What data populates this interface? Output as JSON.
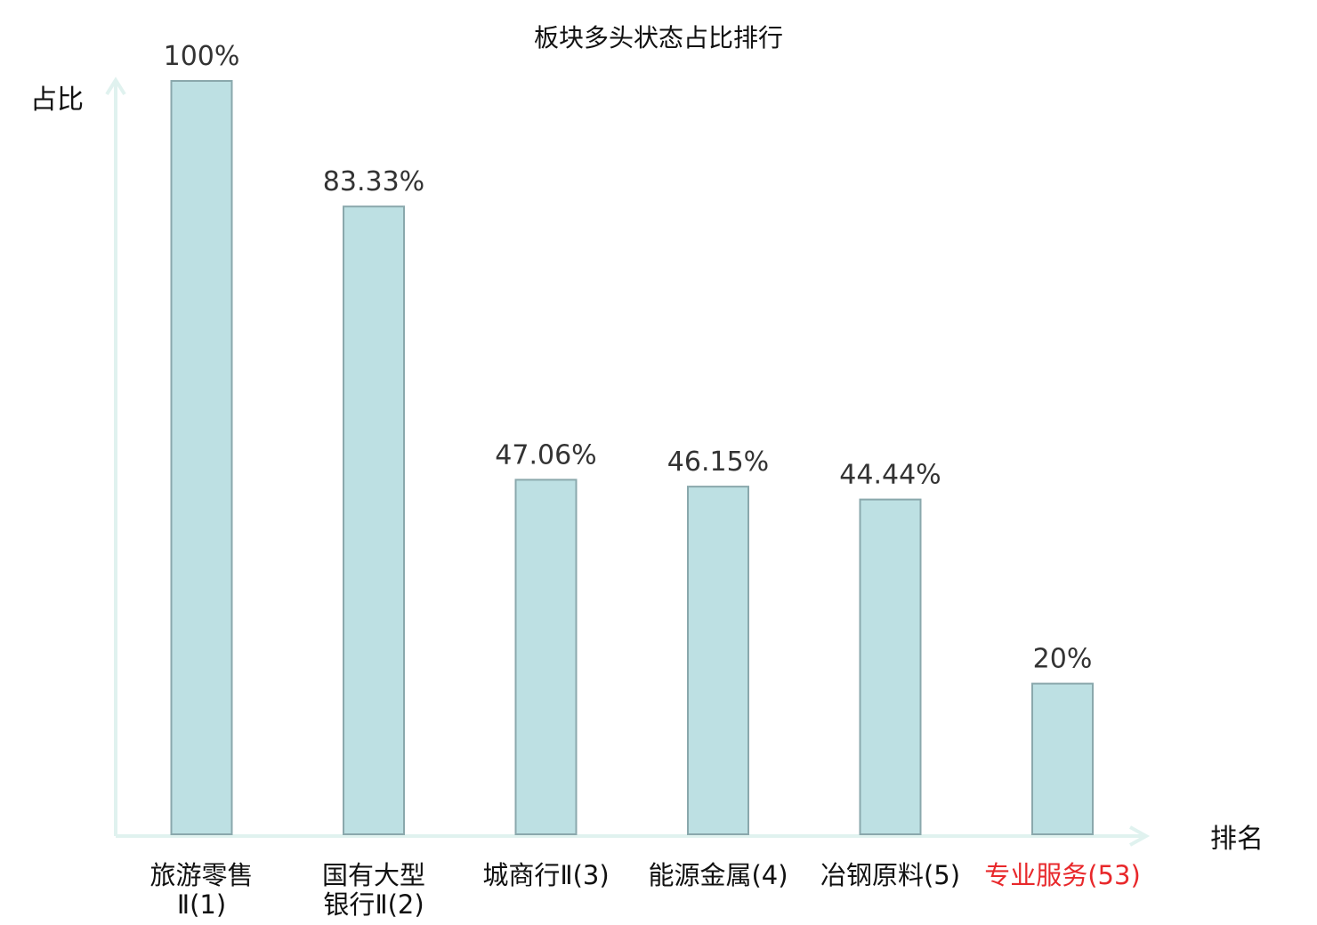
{
  "chart_data": {
    "type": "bar",
    "title": "板块多头状态占比排行",
    "ylabel": "占比",
    "xlabel": "排名",
    "ylim": [
      0,
      100
    ],
    "grid": false,
    "categories": [
      {
        "name_lines": [
          "旅游零售",
          "Ⅱ(1)"
        ],
        "highlight": false
      },
      {
        "name_lines": [
          "国有大型",
          "银行Ⅱ(2)"
        ],
        "highlight": false
      },
      {
        "name_lines": [
          "城商行Ⅱ(3)"
        ],
        "highlight": false
      },
      {
        "name_lines": [
          "能源金属(4)"
        ],
        "highlight": false
      },
      {
        "name_lines": [
          "冶钢原料(5)"
        ],
        "highlight": false
      },
      {
        "name_lines": [
          "专业服务(53)"
        ],
        "highlight": true
      }
    ],
    "values": [
      100,
      83.33,
      47.06,
      46.15,
      44.44,
      20
    ],
    "value_labels": [
      "100%",
      "83.33%",
      "47.06%",
      "46.15%",
      "44.44%",
      "20%"
    ],
    "colors": {
      "bar_fill": "#bde0e3",
      "bar_stroke": "#8aa8ac",
      "axis": "#e0f2ef",
      "highlight_text": "#e8282b",
      "normal_text": "#111111"
    }
  }
}
